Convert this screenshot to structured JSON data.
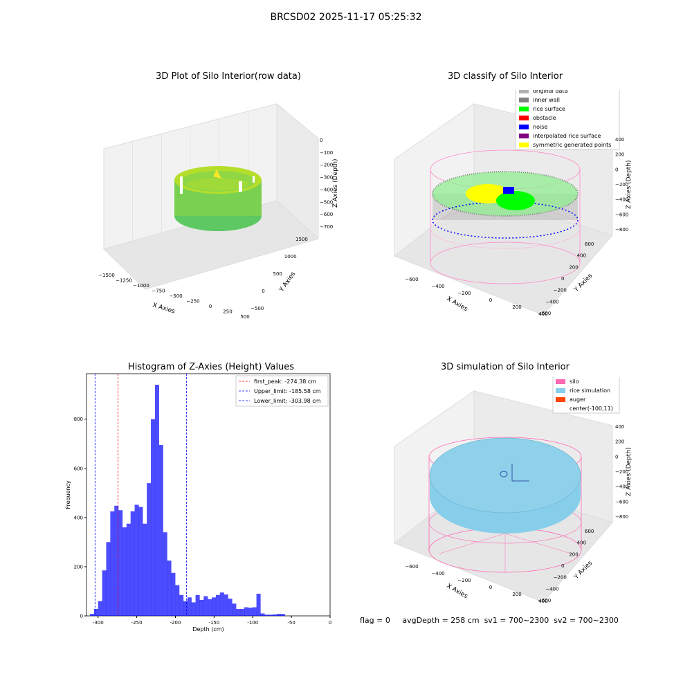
{
  "suptitle": "BRCSD02 2025-11-17 05:25:32",
  "footer": {
    "flag": "flag = 0",
    "avg": "avgDepth = 258 cm",
    "sv1": "sv1 = 700~2300",
    "sv2": "sv2 = 700~2300"
  },
  "panels": {
    "p1": {
      "title": "3D Plot of Silo Interior(row data)",
      "xlabel": "X Axies",
      "ylabel": "Y Axies",
      "zlabel": "Z Axies (Depth)",
      "xticks": [
        "−1500",
        "−1250",
        "−1000",
        "−750",
        "−500",
        "−250",
        "0",
        "250",
        "500"
      ],
      "yticks": [
        "−500",
        "0",
        "500",
        "1000",
        "1500"
      ],
      "zticks": [
        "0",
        "−100",
        "−200",
        "−300",
        "−400",
        "−500",
        "−600",
        "−700"
      ]
    },
    "p2": {
      "title": "3D classify of Silo Interior",
      "xlabel": "X Axies",
      "ylabel": "Y Axies",
      "zlabel": "Z Axies (Depth)",
      "xticks": [
        "−600",
        "−400",
        "−200",
        "0",
        "200",
        "400"
      ],
      "yticks": [
        "−600",
        "−400",
        "−200",
        "0",
        "200",
        "400",
        "600"
      ],
      "zticks": [
        "400",
        "200",
        "0",
        "−200",
        "−400",
        "−600",
        "−800"
      ],
      "legend": [
        {
          "label": "original data",
          "color": "#b0b0b0"
        },
        {
          "label": "inner wall",
          "color": "#808080"
        },
        {
          "label": "rice surface",
          "color": "#00ff00"
        },
        {
          "label": "obstacle",
          "color": "#ff0000"
        },
        {
          "label": "noise",
          "color": "#0000ff"
        },
        {
          "label": "interpolated rice surface",
          "color": "#800080"
        },
        {
          "label": "symmetric generated points",
          "color": "#ffff00"
        }
      ]
    },
    "p4": {
      "title": "3D simulation of Silo Interior",
      "xlabel": "X Axies",
      "ylabel": "Y Axies",
      "zlabel": "Z Axies (Depth)",
      "xticks": [
        "−600",
        "−400",
        "−200",
        "0",
        "200",
        "400"
      ],
      "yticks": [
        "−600",
        "−400",
        "−200",
        "0",
        "200",
        "400",
        "600"
      ],
      "zticks": [
        "400",
        "200",
        "0",
        "−200",
        "−400",
        "−600",
        "−800"
      ],
      "legend": [
        {
          "label": "silo",
          "color": "#ff69b4"
        },
        {
          "label": "rice simulation",
          "color": "#87ceeb"
        },
        {
          "label": "auger",
          "color": "#ff4500"
        },
        {
          "label": "center(-100,11)",
          "color": ""
        }
      ]
    }
  },
  "chart_data": {
    "type": "bar",
    "title": "Histogram of Z-Axies (Height) Values",
    "xlabel": "Depth (cm)",
    "ylabel": "Frequency",
    "xlim": [
      -315,
      0
    ],
    "ylim": [
      0,
      985
    ],
    "xticks": [
      -300,
      -250,
      -200,
      -150,
      -100,
      -50,
      0
    ],
    "yticks": [
      0,
      200,
      400,
      600,
      800
    ],
    "bar_color": "#0000ff",
    "bin_width": 5.25,
    "bins": [
      [
        -310.5,
        8
      ],
      [
        -305.25,
        28
      ],
      [
        -300.0,
        60
      ],
      [
        -294.75,
        185
      ],
      [
        -289.5,
        300
      ],
      [
        -284.25,
        425
      ],
      [
        -279.0,
        448
      ],
      [
        -273.75,
        430
      ],
      [
        -268.5,
        360
      ],
      [
        -263.25,
        375
      ],
      [
        -258.0,
        425
      ],
      [
        -252.75,
        452
      ],
      [
        -247.5,
        443
      ],
      [
        -242.25,
        375
      ],
      [
        -237.0,
        540
      ],
      [
        -231.75,
        800
      ],
      [
        -226.5,
        940
      ],
      [
        -221.25,
        695
      ],
      [
        -216.0,
        340
      ],
      [
        -210.75,
        225
      ],
      [
        -205.5,
        175
      ],
      [
        -200.25,
        125
      ],
      [
        -195.0,
        85
      ],
      [
        -189.75,
        60
      ],
      [
        -184.5,
        75
      ],
      [
        -179.25,
        55
      ],
      [
        -174.0,
        85
      ],
      [
        -168.75,
        65
      ],
      [
        -163.5,
        80
      ],
      [
        -158.25,
        68
      ],
      [
        -153.0,
        75
      ],
      [
        -147.75,
        85
      ],
      [
        -142.5,
        95
      ],
      [
        -137.25,
        87
      ],
      [
        -132.0,
        70
      ],
      [
        -126.75,
        50
      ],
      [
        -121.5,
        28
      ],
      [
        -116.25,
        28
      ],
      [
        -111.0,
        35
      ],
      [
        -105.75,
        33
      ],
      [
        -100.5,
        35
      ],
      [
        -95.25,
        90
      ],
      [
        -90.0,
        10
      ],
      [
        -84.75,
        5
      ],
      [
        -79.5,
        5
      ],
      [
        -74.25,
        6
      ],
      [
        -69.0,
        8
      ],
      [
        -63.75,
        8
      ]
    ],
    "lines": [
      {
        "label": "first_peak: -274.38 cm",
        "x": -274.38,
        "color": "#ff0000"
      },
      {
        "label": "Upper_limit: -185.58 cm",
        "x": -185.58,
        "color": "#0000ff"
      },
      {
        "label": "Lower_limit: -303.98 cm",
        "x": -303.98,
        "color": "#0000ff"
      }
    ]
  }
}
